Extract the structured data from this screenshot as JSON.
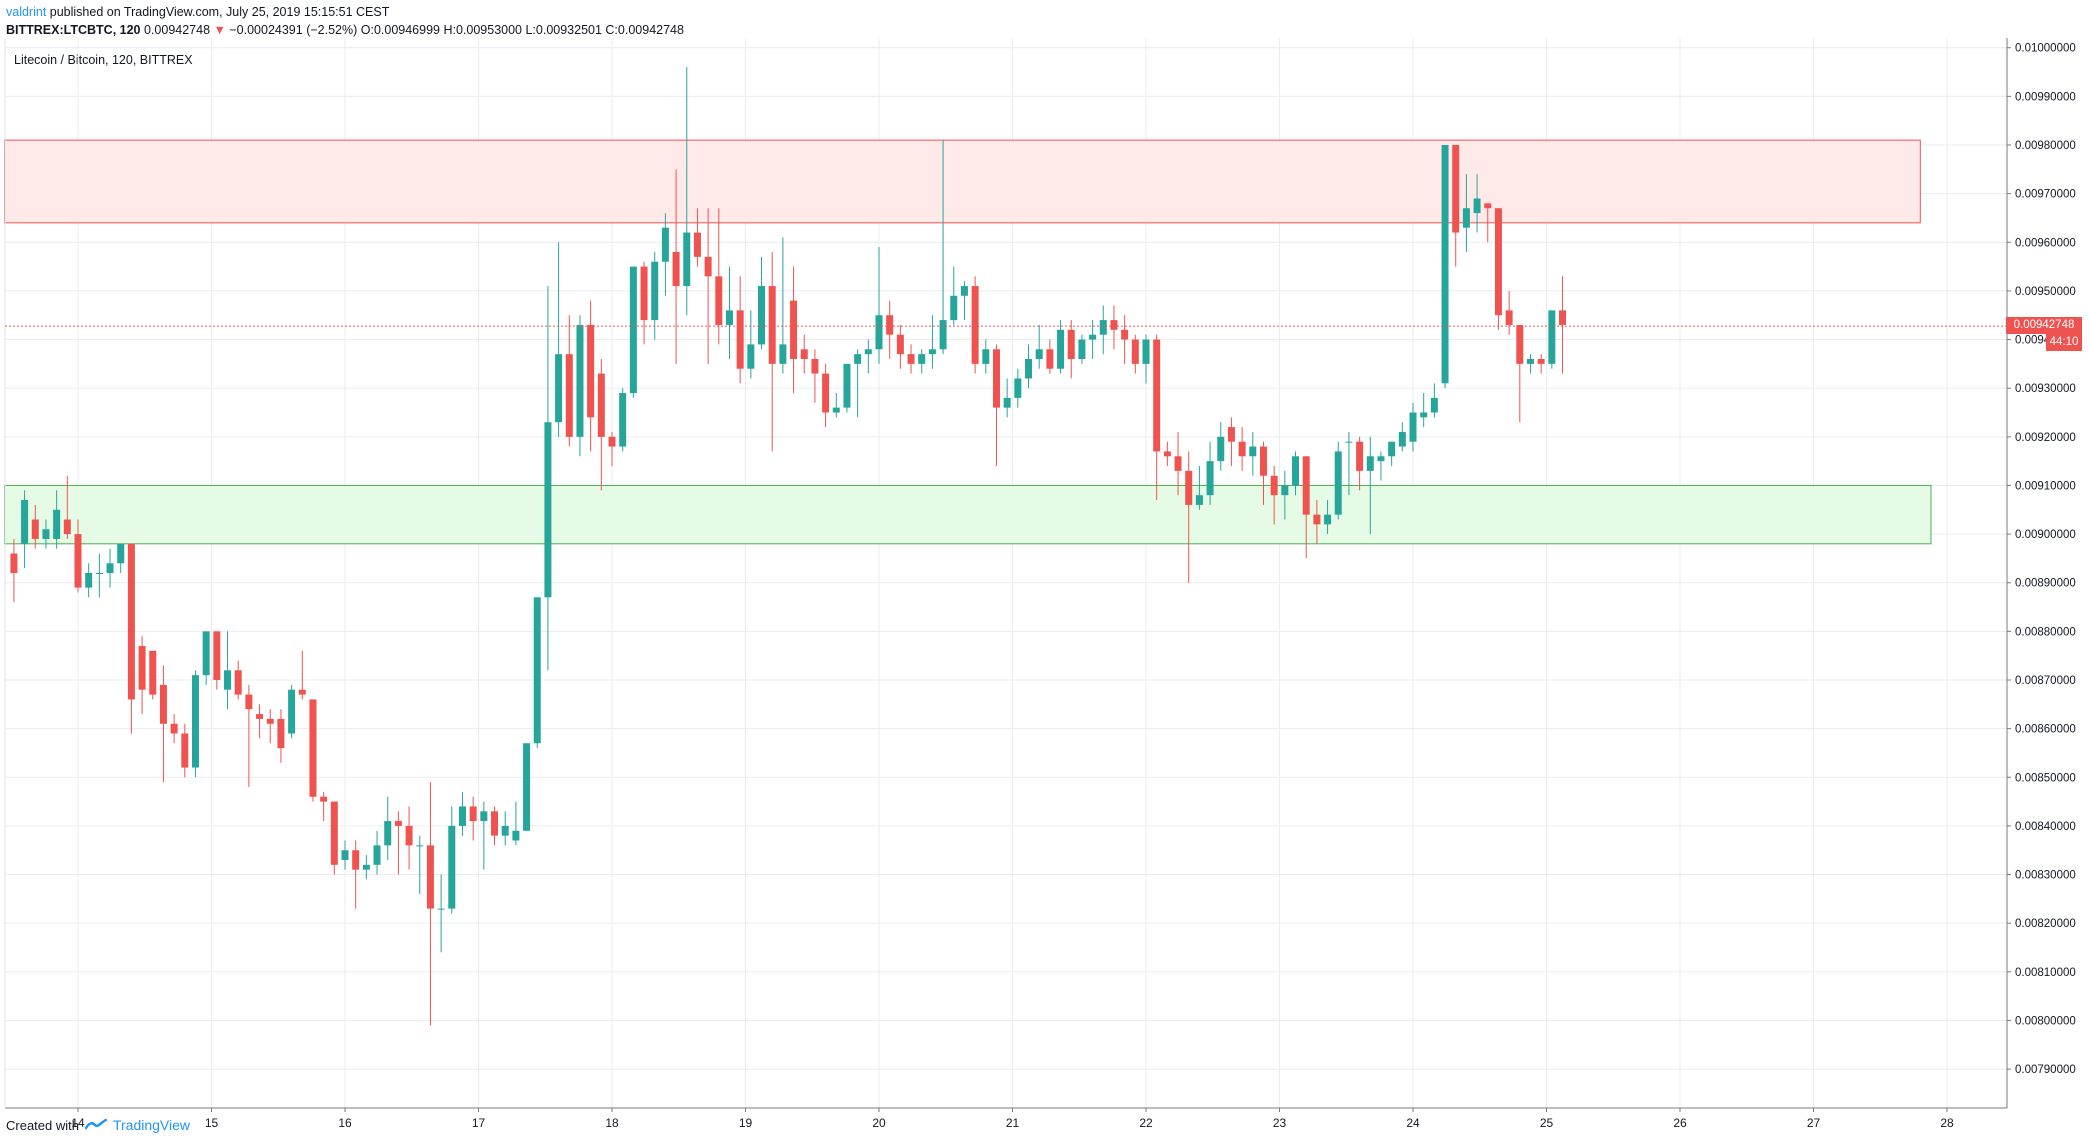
{
  "header": {
    "author": "valdrint",
    "published": " published on TradingView.com, July 25, 2019 15:15:51 CEST",
    "symbol": "BITTREX:LTCBTC, 120",
    "last": "0.00942748",
    "change_arrow": "▼",
    "change": "−0.00024391 (−2.52%)",
    "ohlc": "O:0.00946999 H:0.00953000 L:0.00932501 C:0.00942748"
  },
  "subtitle": "Litecoin / Bitcoin, 120, BITTREX",
  "last_price_label": "0.00942748",
  "countdown_label": "44:10",
  "footer": {
    "created_with": "Created with",
    "brand": "TradingView"
  },
  "colors": {
    "up": "#26a69a",
    "down": "#ef5350",
    "resistance_fill": "#ffe9e9",
    "resistance_stroke": "#ef5350",
    "support_fill": "#e6fbe6",
    "support_stroke": "#4caf50",
    "grid": "#e9ecf2",
    "axis": "#787b86",
    "accent": "#2196f3"
  },
  "chart_data": {
    "type": "candlestick",
    "title": "Litecoin / Bitcoin, 120, BITTREX",
    "x_ticks": [
      "14",
      "15",
      "16",
      "17",
      "18",
      "19",
      "20",
      "21",
      "22",
      "23",
      "24",
      "25",
      "26",
      "27",
      "28"
    ],
    "y_ticks": [
      "0.00790000",
      "0.00800000",
      "0.00810000",
      "0.00820000",
      "0.00830000",
      "0.00840000",
      "0.00850000",
      "0.00860000",
      "0.00870000",
      "0.00880000",
      "0.00890000",
      "0.00900000",
      "0.00910000",
      "0.00920000",
      "0.00930000",
      "0.00940000",
      "0.00950000",
      "0.00960000",
      "0.00970000",
      "0.00980000",
      "0.00990000",
      "0.01000000"
    ],
    "ylim": [
      0.00782,
      0.01002
    ],
    "grid": true,
    "zones": [
      {
        "name": "resistance",
        "from": 0.00964,
        "to": 0.00981,
        "x_start": 13.45,
        "x_end": 27.8
      },
      {
        "name": "support",
        "from": 0.00898,
        "to": 0.0091,
        "x_start": 13.45,
        "x_end": 27.88
      }
    ],
    "last_price": 0.00942748,
    "candles": [
      {
        "o": 0.00896,
        "h": 0.00899,
        "l": 0.00886,
        "c": 0.00892,
        "t": 13.52
      },
      {
        "o": 0.00898,
        "h": 0.00909,
        "l": 0.00893,
        "c": 0.00907,
        "t": 13.6
      },
      {
        "o": 0.00903,
        "h": 0.00906,
        "l": 0.00897,
        "c": 0.00899,
        "t": 13.68
      },
      {
        "o": 0.00899,
        "h": 0.00903,
        "l": 0.00897,
        "c": 0.00901,
        "t": 13.76
      },
      {
        "o": 0.00899,
        "h": 0.00909,
        "l": 0.00897,
        "c": 0.00905,
        "t": 13.84
      },
      {
        "o": 0.00903,
        "h": 0.00912,
        "l": 0.00899,
        "c": 0.009,
        "t": 13.92
      },
      {
        "o": 0.009,
        "h": 0.00903,
        "l": 0.00888,
        "c": 0.00889,
        "t": 14.0
      },
      {
        "o": 0.00889,
        "h": 0.00894,
        "l": 0.00887,
        "c": 0.00892,
        "t": 14.08
      },
      {
        "o": 0.00892,
        "h": 0.00896,
        "l": 0.00887,
        "c": 0.00892,
        "t": 14.16
      },
      {
        "o": 0.00892,
        "h": 0.00897,
        "l": 0.00889,
        "c": 0.00894,
        "t": 14.24
      },
      {
        "o": 0.00894,
        "h": 0.00898,
        "l": 0.00892,
        "c": 0.00898,
        "t": 14.32
      },
      {
        "o": 0.00898,
        "h": 0.00898,
        "l": 0.00859,
        "c": 0.00866,
        "t": 14.4
      },
      {
        "o": 0.00877,
        "h": 0.00879,
        "l": 0.00863,
        "c": 0.00868,
        "t": 14.48
      },
      {
        "o": 0.00876,
        "h": 0.00876,
        "l": 0.00866,
        "c": 0.00867,
        "t": 14.56
      },
      {
        "o": 0.00869,
        "h": 0.00873,
        "l": 0.00849,
        "c": 0.00861,
        "t": 14.64
      },
      {
        "o": 0.00861,
        "h": 0.00863,
        "l": 0.00857,
        "c": 0.00859,
        "t": 14.72
      },
      {
        "o": 0.00859,
        "h": 0.00861,
        "l": 0.0085,
        "c": 0.00852,
        "t": 14.8
      },
      {
        "o": 0.00852,
        "h": 0.00872,
        "l": 0.0085,
        "c": 0.00871,
        "t": 14.88
      },
      {
        "o": 0.00871,
        "h": 0.0088,
        "l": 0.00869,
        "c": 0.0088,
        "t": 14.96
      },
      {
        "o": 0.0088,
        "h": 0.0088,
        "l": 0.00868,
        "c": 0.0087,
        "t": 15.04
      },
      {
        "o": 0.00868,
        "h": 0.0088,
        "l": 0.00864,
        "c": 0.00872,
        "t": 15.12
      },
      {
        "o": 0.00872,
        "h": 0.00874,
        "l": 0.00866,
        "c": 0.00867,
        "t": 15.2
      },
      {
        "o": 0.00867,
        "h": 0.00869,
        "l": 0.00848,
        "c": 0.00864,
        "t": 15.28
      },
      {
        "o": 0.00863,
        "h": 0.00865,
        "l": 0.00858,
        "c": 0.00862,
        "t": 15.36
      },
      {
        "o": 0.00862,
        "h": 0.00864,
        "l": 0.00857,
        "c": 0.00861,
        "t": 15.44
      },
      {
        "o": 0.00862,
        "h": 0.00864,
        "l": 0.00853,
        "c": 0.00856,
        "t": 15.52
      },
      {
        "o": 0.00859,
        "h": 0.00869,
        "l": 0.00858,
        "c": 0.00868,
        "t": 15.6
      },
      {
        "o": 0.00868,
        "h": 0.00876,
        "l": 0.00866,
        "c": 0.00867,
        "t": 15.68
      },
      {
        "o": 0.00866,
        "h": 0.00866,
        "l": 0.00845,
        "c": 0.00846,
        "t": 15.76
      },
      {
        "o": 0.00846,
        "h": 0.00847,
        "l": 0.00841,
        "c": 0.00845,
        "t": 15.84
      },
      {
        "o": 0.00845,
        "h": 0.00845,
        "l": 0.0083,
        "c": 0.00832,
        "t": 15.92
      },
      {
        "o": 0.00833,
        "h": 0.00837,
        "l": 0.00831,
        "c": 0.00835,
        "t": 16.0
      },
      {
        "o": 0.00835,
        "h": 0.00837,
        "l": 0.00823,
        "c": 0.00831,
        "t": 16.08
      },
      {
        "o": 0.00831,
        "h": 0.00834,
        "l": 0.00829,
        "c": 0.00832,
        "t": 16.16
      },
      {
        "o": 0.00832,
        "h": 0.00839,
        "l": 0.0083,
        "c": 0.00836,
        "t": 16.24
      },
      {
        "o": 0.00836,
        "h": 0.00846,
        "l": 0.00833,
        "c": 0.00841,
        "t": 16.32
      },
      {
        "o": 0.00841,
        "h": 0.00843,
        "l": 0.0083,
        "c": 0.0084,
        "t": 16.4
      },
      {
        "o": 0.0084,
        "h": 0.00844,
        "l": 0.00831,
        "c": 0.00836,
        "t": 16.48
      },
      {
        "o": 0.00836,
        "h": 0.00838,
        "l": 0.00826,
        "c": 0.00836,
        "t": 16.56
      },
      {
        "o": 0.00836,
        "h": 0.00849,
        "l": 0.00799,
        "c": 0.00823,
        "t": 16.64
      },
      {
        "o": 0.00823,
        "h": 0.0083,
        "l": 0.00814,
        "c": 0.00823,
        "t": 16.72
      },
      {
        "o": 0.00823,
        "h": 0.00844,
        "l": 0.00822,
        "c": 0.0084,
        "t": 16.8
      },
      {
        "o": 0.0084,
        "h": 0.00847,
        "l": 0.00838,
        "c": 0.00844,
        "t": 16.88
      },
      {
        "o": 0.00844,
        "h": 0.00846,
        "l": 0.00837,
        "c": 0.00841,
        "t": 16.96
      },
      {
        "o": 0.00841,
        "h": 0.00845,
        "l": 0.00831,
        "c": 0.00843,
        "t": 17.04
      },
      {
        "o": 0.00843,
        "h": 0.00844,
        "l": 0.00836,
        "c": 0.00838,
        "t": 17.12
      },
      {
        "o": 0.00838,
        "h": 0.00843,
        "l": 0.00836,
        "c": 0.0084,
        "t": 17.2
      },
      {
        "o": 0.00837,
        "h": 0.00845,
        "l": 0.00836,
        "c": 0.00839,
        "t": 17.28
      },
      {
        "o": 0.00839,
        "h": 0.00857,
        "l": 0.00839,
        "c": 0.00857,
        "t": 17.36
      },
      {
        "o": 0.00857,
        "h": 0.00887,
        "l": 0.00856,
        "c": 0.00887,
        "t": 17.44
      },
      {
        "o": 0.00887,
        "h": 0.00951,
        "l": 0.00872,
        "c": 0.00923,
        "t": 17.52
      },
      {
        "o": 0.00923,
        "h": 0.0096,
        "l": 0.0092,
        "c": 0.00937,
        "t": 17.6
      },
      {
        "o": 0.00937,
        "h": 0.00945,
        "l": 0.00918,
        "c": 0.0092,
        "t": 17.68
      },
      {
        "o": 0.0092,
        "h": 0.00945,
        "l": 0.00916,
        "c": 0.00943,
        "t": 17.76
      },
      {
        "o": 0.00943,
        "h": 0.00948,
        "l": 0.00917,
        "c": 0.00924,
        "t": 17.84
      },
      {
        "o": 0.00933,
        "h": 0.00936,
        "l": 0.00909,
        "c": 0.0092,
        "t": 17.92
      },
      {
        "o": 0.0092,
        "h": 0.00921,
        "l": 0.00914,
        "c": 0.00918,
        "t": 18.0
      },
      {
        "o": 0.00918,
        "h": 0.0093,
        "l": 0.00917,
        "c": 0.00929,
        "t": 18.08
      },
      {
        "o": 0.00929,
        "h": 0.00955,
        "l": 0.00928,
        "c": 0.00955,
        "t": 18.16
      },
      {
        "o": 0.00955,
        "h": 0.00956,
        "l": 0.00939,
        "c": 0.00944,
        "t": 18.24
      },
      {
        "o": 0.00944,
        "h": 0.00958,
        "l": 0.0094,
        "c": 0.00956,
        "t": 18.32
      },
      {
        "o": 0.00956,
        "h": 0.00966,
        "l": 0.00949,
        "c": 0.00963,
        "t": 18.4
      },
      {
        "o": 0.00958,
        "h": 0.00975,
        "l": 0.00935,
        "c": 0.00951,
        "t": 18.48
      },
      {
        "o": 0.00951,
        "h": 0.00996,
        "l": 0.00945,
        "c": 0.00962,
        "t": 18.56
      },
      {
        "o": 0.00962,
        "h": 0.00967,
        "l": 0.00955,
        "c": 0.00957,
        "t": 18.64
      },
      {
        "o": 0.00957,
        "h": 0.00967,
        "l": 0.00935,
        "c": 0.00953,
        "t": 18.72
      },
      {
        "o": 0.00953,
        "h": 0.00967,
        "l": 0.00939,
        "c": 0.00943,
        "t": 18.8
      },
      {
        "o": 0.00943,
        "h": 0.00955,
        "l": 0.00936,
        "c": 0.00946,
        "t": 18.88
      },
      {
        "o": 0.00946,
        "h": 0.00953,
        "l": 0.00931,
        "c": 0.00934,
        "t": 18.96
      },
      {
        "o": 0.00934,
        "h": 0.00946,
        "l": 0.00932,
        "c": 0.00939,
        "t": 19.04
      },
      {
        "o": 0.00939,
        "h": 0.00957,
        "l": 0.00938,
        "c": 0.00951,
        "t": 19.12
      },
      {
        "o": 0.00951,
        "h": 0.00958,
        "l": 0.00917,
        "c": 0.00935,
        "t": 19.2
      },
      {
        "o": 0.00935,
        "h": 0.00961,
        "l": 0.00933,
        "c": 0.00939,
        "t": 19.28
      },
      {
        "o": 0.00948,
        "h": 0.00955,
        "l": 0.00929,
        "c": 0.00936,
        "t": 19.36
      },
      {
        "o": 0.00938,
        "h": 0.00941,
        "l": 0.00933,
        "c": 0.00936,
        "t": 19.44
      },
      {
        "o": 0.00936,
        "h": 0.00938,
        "l": 0.00927,
        "c": 0.00933,
        "t": 19.52
      },
      {
        "o": 0.00933,
        "h": 0.00935,
        "l": 0.00922,
        "c": 0.00925,
        "t": 19.6
      },
      {
        "o": 0.00925,
        "h": 0.00929,
        "l": 0.00924,
        "c": 0.00926,
        "t": 19.68
      },
      {
        "o": 0.00926,
        "h": 0.00934,
        "l": 0.00925,
        "c": 0.00935,
        "t": 19.76
      },
      {
        "o": 0.00935,
        "h": 0.00938,
        "l": 0.00924,
        "c": 0.00937,
        "t": 19.84
      },
      {
        "o": 0.00937,
        "h": 0.0094,
        "l": 0.00933,
        "c": 0.00938,
        "t": 19.92
      },
      {
        "o": 0.00938,
        "h": 0.00959,
        "l": 0.00935,
        "c": 0.00945,
        "t": 20.0
      },
      {
        "o": 0.00945,
        "h": 0.00948,
        "l": 0.00936,
        "c": 0.00941,
        "t": 20.08
      },
      {
        "o": 0.00941,
        "h": 0.00943,
        "l": 0.00934,
        "c": 0.00937,
        "t": 20.16
      },
      {
        "o": 0.00937,
        "h": 0.00939,
        "l": 0.00933,
        "c": 0.00935,
        "t": 20.24
      },
      {
        "o": 0.00935,
        "h": 0.00938,
        "l": 0.00933,
        "c": 0.00937,
        "t": 20.32
      },
      {
        "o": 0.00937,
        "h": 0.00945,
        "l": 0.00934,
        "c": 0.00938,
        "t": 20.4
      },
      {
        "o": 0.00938,
        "h": 0.00981,
        "l": 0.00937,
        "c": 0.00944,
        "t": 20.48
      },
      {
        "o": 0.00944,
        "h": 0.00955,
        "l": 0.00943,
        "c": 0.00949,
        "t": 20.56
      },
      {
        "o": 0.00949,
        "h": 0.00952,
        "l": 0.00944,
        "c": 0.00951,
        "t": 20.64
      },
      {
        "o": 0.00951,
        "h": 0.00953,
        "l": 0.00933,
        "c": 0.00935,
        "t": 20.72
      },
      {
        "o": 0.00935,
        "h": 0.0094,
        "l": 0.00933,
        "c": 0.00938,
        "t": 20.8
      },
      {
        "o": 0.00938,
        "h": 0.00939,
        "l": 0.00914,
        "c": 0.00926,
        "t": 20.88
      },
      {
        "o": 0.00926,
        "h": 0.00932,
        "l": 0.00924,
        "c": 0.00928,
        "t": 20.96
      },
      {
        "o": 0.00928,
        "h": 0.00934,
        "l": 0.00926,
        "c": 0.00932,
        "t": 21.04
      },
      {
        "o": 0.00932,
        "h": 0.00939,
        "l": 0.0093,
        "c": 0.00936,
        "t": 21.12
      },
      {
        "o": 0.00936,
        "h": 0.00943,
        "l": 0.00934,
        "c": 0.00938,
        "t": 21.2
      },
      {
        "o": 0.00938,
        "h": 0.0094,
        "l": 0.00933,
        "c": 0.00934,
        "t": 21.28
      },
      {
        "o": 0.00934,
        "h": 0.00944,
        "l": 0.00933,
        "c": 0.00942,
        "t": 21.36
      },
      {
        "o": 0.00942,
        "h": 0.00944,
        "l": 0.00932,
        "c": 0.00936,
        "t": 21.44
      },
      {
        "o": 0.00936,
        "h": 0.00941,
        "l": 0.00935,
        "c": 0.0094,
        "t": 21.52
      },
      {
        "o": 0.0094,
        "h": 0.00944,
        "l": 0.00936,
        "c": 0.00941,
        "t": 21.6
      },
      {
        "o": 0.00941,
        "h": 0.00947,
        "l": 0.00937,
        "c": 0.00944,
        "t": 21.68
      },
      {
        "o": 0.00944,
        "h": 0.00947,
        "l": 0.00938,
        "c": 0.00942,
        "t": 21.76
      },
      {
        "o": 0.00942,
        "h": 0.00945,
        "l": 0.00935,
        "c": 0.0094,
        "t": 21.84
      },
      {
        "o": 0.0094,
        "h": 0.00941,
        "l": 0.00933,
        "c": 0.00935,
        "t": 21.92
      },
      {
        "o": 0.00935,
        "h": 0.00941,
        "l": 0.00931,
        "c": 0.0094,
        "t": 22.0
      },
      {
        "o": 0.0094,
        "h": 0.00941,
        "l": 0.00907,
        "c": 0.00917,
        "t": 22.08
      },
      {
        "o": 0.00917,
        "h": 0.00919,
        "l": 0.00914,
        "c": 0.00916,
        "t": 22.16
      },
      {
        "o": 0.00916,
        "h": 0.00921,
        "l": 0.00908,
        "c": 0.00913,
        "t": 22.24
      },
      {
        "o": 0.00913,
        "h": 0.00917,
        "l": 0.0089,
        "c": 0.00906,
        "t": 22.32
      },
      {
        "o": 0.00906,
        "h": 0.00914,
        "l": 0.00905,
        "c": 0.00908,
        "t": 22.4
      },
      {
        "o": 0.00908,
        "h": 0.00919,
        "l": 0.00906,
        "c": 0.00915,
        "t": 22.48
      },
      {
        "o": 0.00915,
        "h": 0.00923,
        "l": 0.00913,
        "c": 0.0092,
        "t": 22.56
      },
      {
        "o": 0.00922,
        "h": 0.00924,
        "l": 0.00914,
        "c": 0.00919,
        "t": 22.64
      },
      {
        "o": 0.00919,
        "h": 0.00922,
        "l": 0.00913,
        "c": 0.00916,
        "t": 22.72
      },
      {
        "o": 0.00916,
        "h": 0.00921,
        "l": 0.00912,
        "c": 0.00918,
        "t": 22.8
      },
      {
        "o": 0.00918,
        "h": 0.00919,
        "l": 0.00906,
        "c": 0.00912,
        "t": 22.88
      },
      {
        "o": 0.00912,
        "h": 0.00914,
        "l": 0.00902,
        "c": 0.00908,
        "t": 22.96
      },
      {
        "o": 0.00908,
        "h": 0.00913,
        "l": 0.00903,
        "c": 0.0091,
        "t": 23.04
      },
      {
        "o": 0.0091,
        "h": 0.00917,
        "l": 0.00908,
        "c": 0.00916,
        "t": 23.12
      },
      {
        "o": 0.00916,
        "h": 0.00916,
        "l": 0.00895,
        "c": 0.00904,
        "t": 23.2
      },
      {
        "o": 0.00904,
        "h": 0.00907,
        "l": 0.00898,
        "c": 0.00902,
        "t": 23.28
      },
      {
        "o": 0.00902,
        "h": 0.00907,
        "l": 0.009,
        "c": 0.00904,
        "t": 23.36
      },
      {
        "o": 0.00904,
        "h": 0.00919,
        "l": 0.00903,
        "c": 0.00917,
        "t": 23.44
      },
      {
        "o": 0.00919,
        "h": 0.00921,
        "l": 0.00908,
        "c": 0.00919,
        "t": 23.52
      },
      {
        "o": 0.00919,
        "h": 0.0092,
        "l": 0.00909,
        "c": 0.00913,
        "t": 23.6
      },
      {
        "o": 0.00913,
        "h": 0.0092,
        "l": 0.009,
        "c": 0.00916,
        "t": 23.68
      },
      {
        "o": 0.00915,
        "h": 0.00917,
        "l": 0.00911,
        "c": 0.00916,
        "t": 23.76
      },
      {
        "o": 0.00916,
        "h": 0.00919,
        "l": 0.00914,
        "c": 0.00919,
        "t": 23.84
      },
      {
        "o": 0.00918,
        "h": 0.00923,
        "l": 0.00917,
        "c": 0.00921,
        "t": 23.92
      },
      {
        "o": 0.00919,
        "h": 0.00927,
        "l": 0.00917,
        "c": 0.00925,
        "t": 24.0
      },
      {
        "o": 0.00924,
        "h": 0.00929,
        "l": 0.00922,
        "c": 0.00925,
        "t": 24.08
      },
      {
        "o": 0.00925,
        "h": 0.00931,
        "l": 0.00924,
        "c": 0.00928,
        "t": 24.16
      },
      {
        "o": 0.00931,
        "h": 0.0098,
        "l": 0.0093,
        "c": 0.0098,
        "t": 24.24
      },
      {
        "o": 0.0098,
        "h": 0.0098,
        "l": 0.00955,
        "c": 0.00962,
        "t": 24.32
      },
      {
        "o": 0.00963,
        "h": 0.00974,
        "l": 0.00958,
        "c": 0.00967,
        "t": 24.4
      },
      {
        "o": 0.00966,
        "h": 0.00974,
        "l": 0.00962,
        "c": 0.00969,
        "t": 24.48
      },
      {
        "o": 0.00968,
        "h": 0.00968,
        "l": 0.0096,
        "c": 0.00967,
        "t": 24.56
      },
      {
        "o": 0.00967,
        "h": 0.00967,
        "l": 0.00942,
        "c": 0.00945,
        "t": 24.64
      },
      {
        "o": 0.00946,
        "h": 0.0095,
        "l": 0.00941,
        "c": 0.00943,
        "t": 24.72
      },
      {
        "o": 0.00943,
        "h": 0.00943,
        "l": 0.00923,
        "c": 0.00935,
        "t": 24.8
      },
      {
        "o": 0.00935,
        "h": 0.00937,
        "l": 0.00933,
        "c": 0.00936,
        "t": 24.88
      },
      {
        "o": 0.00936,
        "h": 0.00937,
        "l": 0.00933,
        "c": 0.00935,
        "t": 24.96
      },
      {
        "o": 0.00935,
        "h": 0.00946,
        "l": 0.00934,
        "c": 0.00946,
        "t": 25.04
      },
      {
        "o": 0.00946,
        "h": 0.00953,
        "l": 0.00933,
        "c": 0.00943,
        "t": 25.12
      }
    ]
  }
}
